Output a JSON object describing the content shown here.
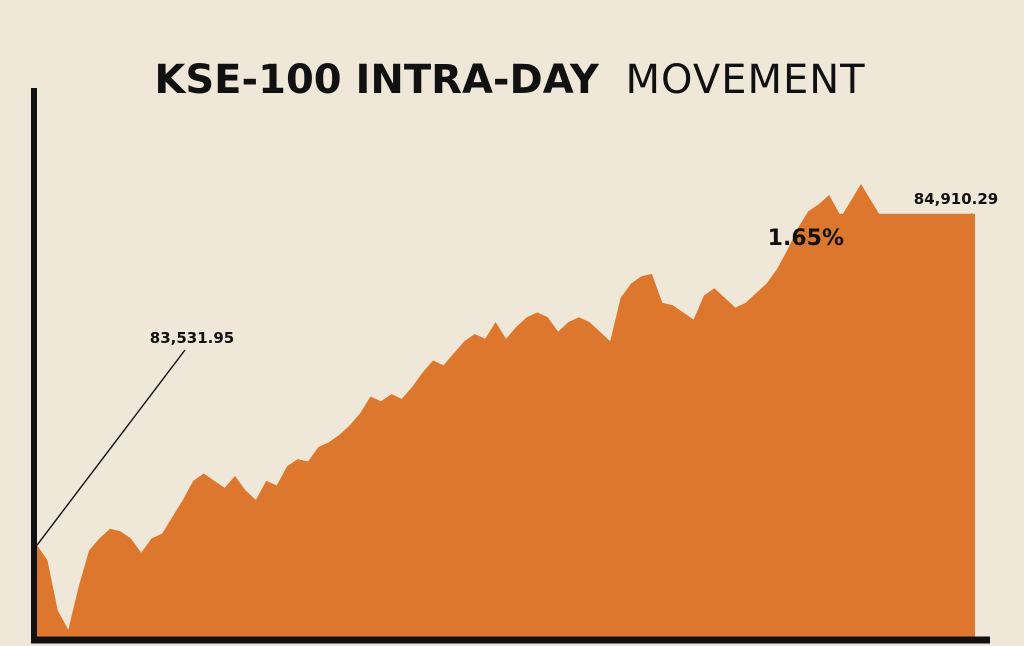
{
  "chart_data": {
    "type": "area",
    "title_bold": "KSE-100 INTRA-DAY",
    "title_light": "MOVEMENT",
    "xlabel": "",
    "ylabel": "",
    "ylim": [
      83150,
      85300
    ],
    "open_label": "83,531.95",
    "close_label": "84,910.29",
    "change_label": "1.65%",
    "change_direction": "up",
    "colors": {
      "area": "#dd772e",
      "arrow": "#dd772e",
      "axis": "#111111",
      "background": "#efe8d8"
    },
    "series": [
      {
        "values": [
          83532,
          83470,
          83260,
          83180,
          83360,
          83510,
          83560,
          83600,
          83590,
          83560,
          83500,
          83560,
          83580,
          83650,
          83720,
          83800,
          83830,
          83800,
          83770,
          83820,
          83760,
          83720,
          83800,
          83780,
          83860,
          83890,
          83880,
          83940,
          83960,
          83990,
          84030,
          84080,
          84150,
          84130,
          84160,
          84140,
          84190,
          84250,
          84300,
          84280,
          84330,
          84380,
          84410,
          84390,
          84460,
          84390,
          84440,
          84480,
          84500,
          84480,
          84420,
          84460,
          84480,
          84460,
          84420,
          84380,
          84560,
          84620,
          84650,
          84660,
          84540,
          84530,
          84500,
          84470,
          84570,
          84600,
          84560,
          84520,
          84540,
          84580,
          84620,
          84680,
          84760,
          84850,
          84920,
          84950,
          84988,
          84910,
          84910,
          84910,
          84910,
          84910,
          84910,
          84910,
          84910,
          84910,
          84910,
          84910,
          84910,
          84910,
          84910
        ]
      }
    ]
  }
}
